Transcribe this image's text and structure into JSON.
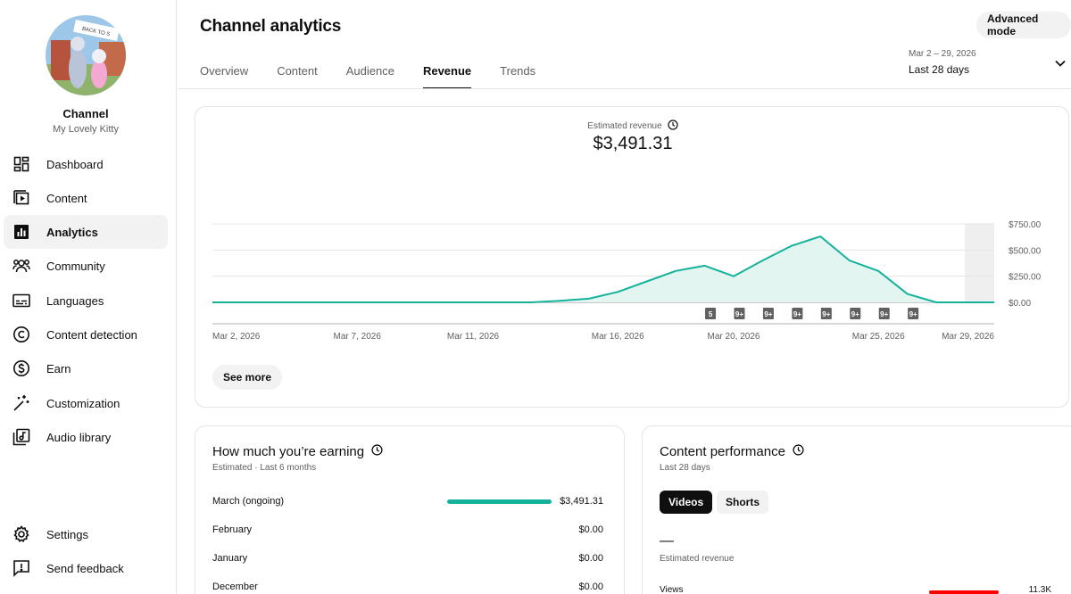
{
  "sidebar": {
    "channel_title": "Channel",
    "channel_name": "My Lovely Kitty",
    "avatar_banner_text": "BACK TO S",
    "items": [
      {
        "label": "Dashboard",
        "icon": "dashboard-icon"
      },
      {
        "label": "Content",
        "icon": "content-icon"
      },
      {
        "label": "Analytics",
        "icon": "analytics-icon",
        "active": true
      },
      {
        "label": "Community",
        "icon": "community-icon"
      },
      {
        "label": "Languages",
        "icon": "languages-icon"
      },
      {
        "label": "Content detection",
        "icon": "copyright-icon"
      },
      {
        "label": "Earn",
        "icon": "dollar-icon"
      },
      {
        "label": "Customization",
        "icon": "magic-wand-icon"
      },
      {
        "label": "Audio library",
        "icon": "audio-library-icon"
      }
    ],
    "bottom_items": [
      {
        "label": "Settings",
        "icon": "gear-icon"
      },
      {
        "label": "Send feedback",
        "icon": "feedback-icon"
      }
    ]
  },
  "header": {
    "title": "Channel analytics",
    "tabs": [
      "Overview",
      "Content",
      "Audience",
      "Revenue",
      "Trends"
    ],
    "active_tab": "Revenue",
    "advanced_mode_label": "Advanced mode",
    "date_range_small": "Mar 2 – 29, 2026",
    "date_range_main": "Last 28 days"
  },
  "revenue_card": {
    "label": "Estimated revenue",
    "value": "$3,491.31",
    "see_more_label": "See more"
  },
  "chart_data": {
    "type": "area",
    "title": "Estimated revenue",
    "x_tick_labels": [
      "Mar 2, 2026",
      "Mar 7, 2026",
      "Mar 11, 2026",
      "Mar 16, 2026",
      "Mar 20, 2026",
      "Mar 25, 2026",
      "Mar 29, 2026"
    ],
    "x_tick_days": [
      2,
      7,
      11,
      16,
      20,
      25,
      29
    ],
    "y_tick_labels": [
      "$750.00",
      "$500.00",
      "$250.00",
      "$0.00"
    ],
    "y_tick_values": [
      750,
      500,
      250,
      0
    ],
    "ylim": [
      0,
      750
    ],
    "xlim": [
      2,
      29
    ],
    "series": [
      {
        "name": "Estimated revenue",
        "days": [
          2,
          3,
          4,
          5,
          6,
          7,
          8,
          9,
          10,
          11,
          12,
          13,
          14,
          15,
          16,
          17,
          18,
          19,
          20,
          21,
          22,
          23,
          24,
          25,
          26,
          27,
          28,
          29
        ],
        "values": [
          0,
          0,
          0,
          0,
          0,
          0,
          0,
          0,
          0,
          0,
          0,
          0,
          15,
          35,
          100,
          200,
          300,
          350,
          250,
          400,
          540,
          630,
          400,
          300,
          80,
          0,
          0,
          0
        ]
      }
    ],
    "markers": [
      {
        "day": 19.2,
        "label": "5"
      },
      {
        "day": 20.2,
        "label": "9+"
      },
      {
        "day": 21.2,
        "label": "9+"
      },
      {
        "day": 22.2,
        "label": "9+"
      },
      {
        "day": 23.2,
        "label": "9+"
      },
      {
        "day": 24.2,
        "label": "9+"
      },
      {
        "day": 25.2,
        "label": "9+"
      },
      {
        "day": 26.2,
        "label": "9+"
      }
    ],
    "colors": {
      "line": "#14b29a",
      "fill": "#e2f5f1",
      "grid": "#e5e5e5",
      "marker_bg": "#606060",
      "shaded_region": "#efefef"
    }
  },
  "earning_card": {
    "title": "How much you’re earning",
    "subtitle": "Estimated · Last 6 months",
    "rows": [
      {
        "label": "March (ongoing)",
        "value": "$3,491.31",
        "fraction": 1.0
      },
      {
        "label": "February",
        "value": "$0.00",
        "fraction": 0
      },
      {
        "label": "January",
        "value": "$0.00",
        "fraction": 0
      },
      {
        "label": "December",
        "value": "$0.00",
        "fraction": 0
      }
    ]
  },
  "performance_card": {
    "title": "Content performance",
    "subtitle": "Last 28 days",
    "pills": [
      "Videos",
      "Shorts"
    ],
    "active_pill": "Videos",
    "metric_value": "—",
    "metric_label": "Estimated revenue",
    "views_label": "Views",
    "views_value": "11.3K"
  }
}
